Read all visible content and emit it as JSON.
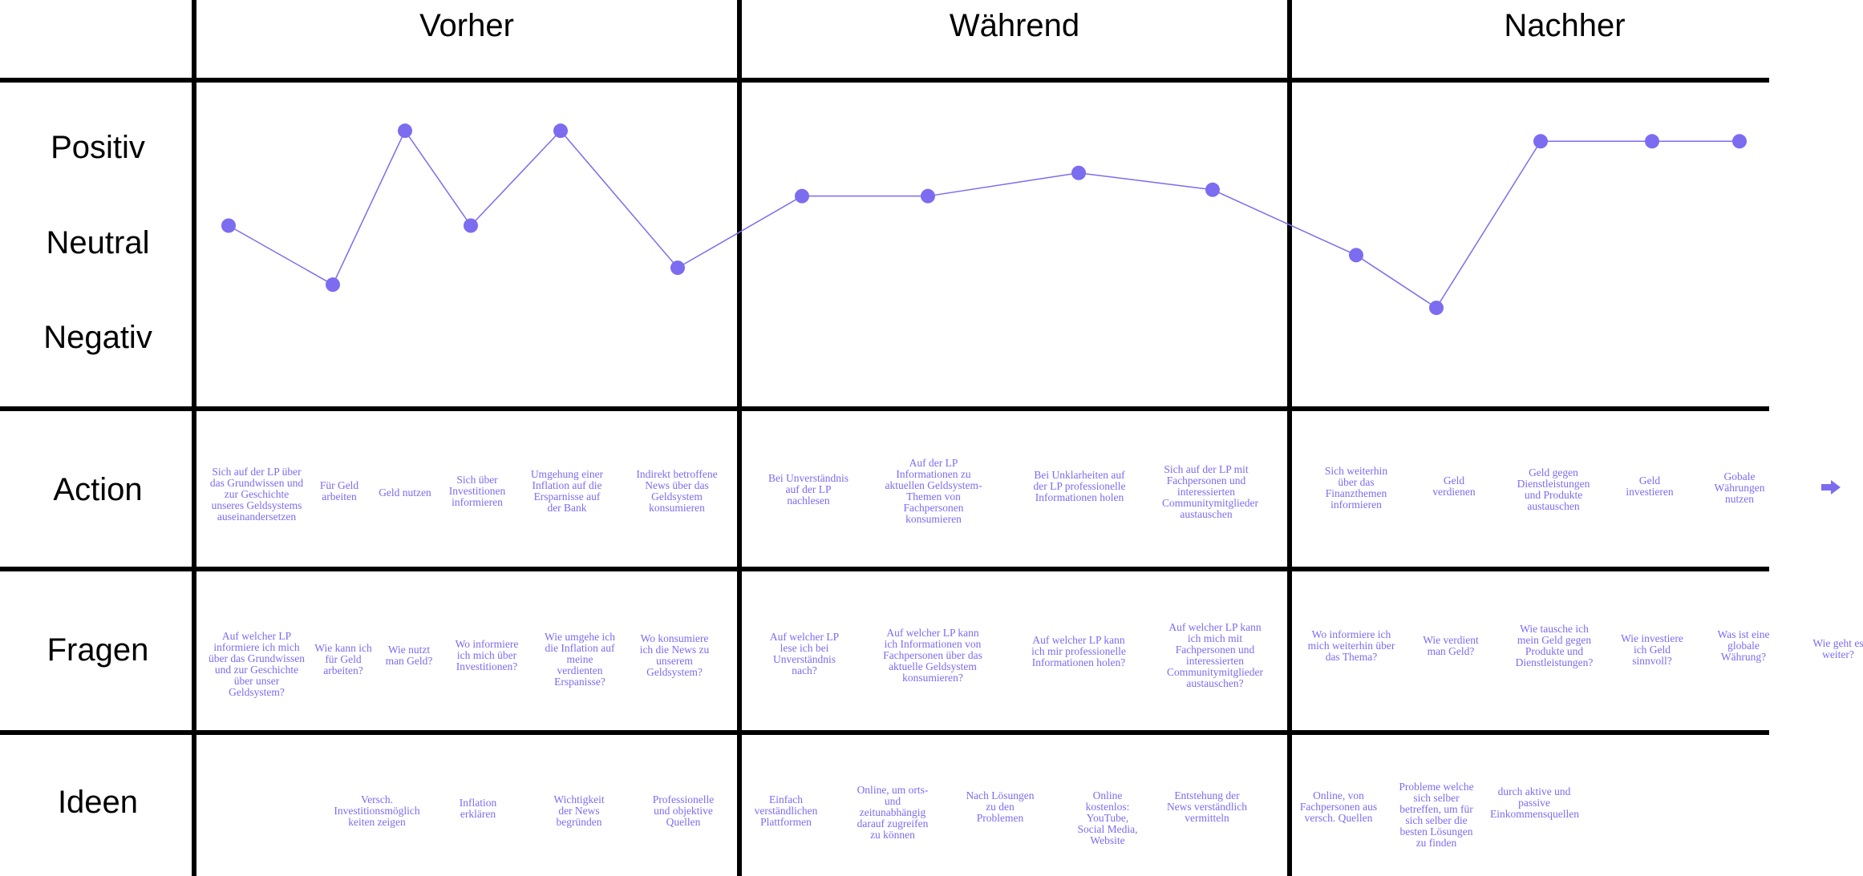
{
  "phases": {
    "before": "Vorher",
    "during": "Während",
    "after": "Nachher"
  },
  "rows": {
    "positive": "Positiv",
    "neutral": "Neutral",
    "negative": "Negativ",
    "action": "Action",
    "questions": "Fragen",
    "ideas": "Ideen"
  },
  "colors": {
    "accent": "#7b6cf0",
    "grid": "#000000"
  },
  "arrow_icon": "right-arrow-icon",
  "journey_levels": [
    0.5,
    0.22,
    0.95,
    0.5,
    0.95,
    0.3,
    0.64,
    0.64,
    0.75,
    0.67,
    0.36,
    0.11,
    0.9,
    0.9,
    0.9
  ],
  "actions": {
    "before": [
      "Sich auf der LP über das Grundwissen und zur Geschichte unseres Geldsystems auseinandersetzen",
      "Für Geld arbeiten",
      "Geld nutzen",
      "Sich über Investitionen informieren",
      "Umgehung einer Inflation auf die Ersparnisse auf der Bank",
      "Indirekt betroffene News über das Geldsystem konsumieren"
    ],
    "during": [
      "Bei Unverständnis auf der LP nachlesen",
      "Auf der LP Informationen zu aktuellen Geldsystem-Themen von Fachpersonen konsumieren",
      "Bei Unklarheiten auf der LP professionelle Informationen holen",
      "Sich auf der LP mit Fachpersonen und interessierten Communitymitglieder austauschen"
    ],
    "after": [
      "Sich weiterhin über das Finanzthemen informieren",
      "Geld verdienen",
      "Geld gegen Dienstleistungen und Produkte austauschen",
      "Geld investieren",
      "Gobale Währungen nutzen"
    ]
  },
  "questions": {
    "before": [
      "Auf welcher LP informiere ich mich über das Grundwissen und zur Geschichte über unser Geldsystem?",
      "Wie kann ich für Geld arbeiten?",
      "Wie nutzt man Geld?",
      "Wo informiere ich mich über Investitionen?",
      "Wie umgehe ich die Inflation auf meine verdienten Erspanisse?",
      "Wo konsumiere ich die News zu unserem Geldsystem?"
    ],
    "during": [
      "Auf welcher LP lese ich bei Unverständnis nach?",
      "Auf welcher LP kann ich Informationen von Fachpersonen über das aktuelle Geldsystem konsumieren?",
      "Auf welcher LP kann ich mir professionelle Informationen holen?",
      "Auf welcher LP kann ich mich mit Fachpersonen und interessierten Communitymitglieder austauschen?"
    ],
    "after": [
      "Wo informiere ich mich weiterhin über das Thema?",
      "Wie verdient man Geld?",
      "Wie tausche ich mein Geld gegen Produkte und Dienstleistungen?",
      "Wie investiere ich Geld sinnvoll?",
      "Was ist eine globale Währung?",
      "Wie geht es weiter?"
    ]
  },
  "ideas": {
    "before": [
      "Versch. Investitionsmöglich keiten zeigen",
      "Inflation erklären",
      "Wichtigkeit der News begründen",
      "Professionelle und objektive Quellen"
    ],
    "during": [
      "Einfach verständlichen Plattformen",
      "Online, um orts- und zeitunabhängig darauf zugreifen zu können",
      "Nach Lösungen zu den Problemen",
      "Online kostenlos: YouTube, Social Media, Website",
      "Entstehung der News verständlich vermitteln"
    ],
    "after": [
      "Online, von Fachpersonen aus versch. Quellen",
      "Probleme welche sich selber betreffen, um für sich selber die besten Lösungen zu finden",
      "durch aktive und passive Einkommensquellen"
    ]
  }
}
